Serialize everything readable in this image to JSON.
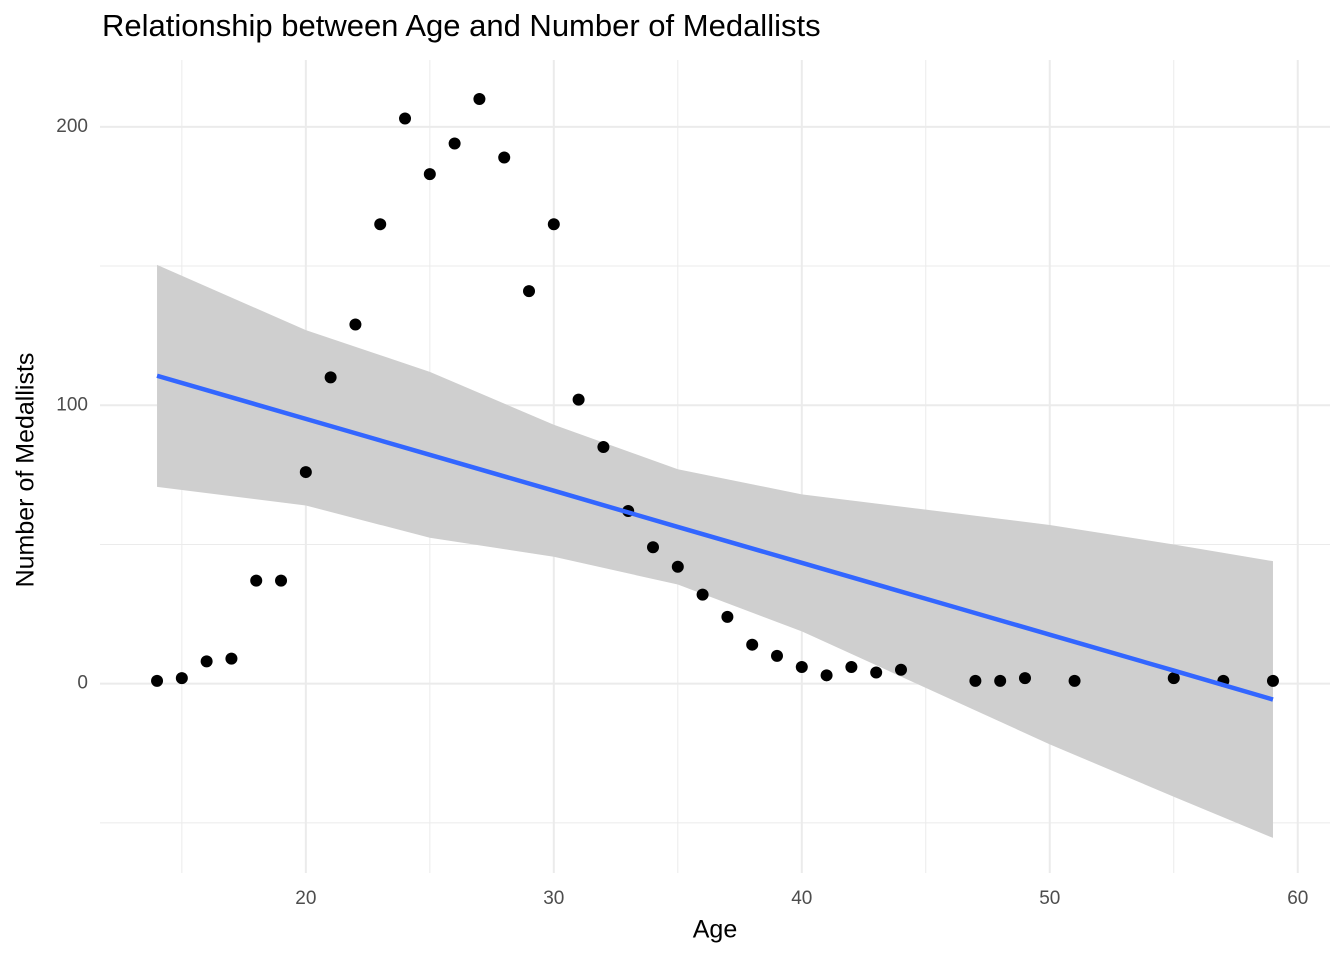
{
  "chart_data": {
    "type": "scatter",
    "title": "Relationship between Age and Number of Medallists",
    "x_label": "Age",
    "y_label": "Number of Medallists",
    "x": [
      14,
      15,
      16,
      17,
      18,
      19,
      20,
      21,
      22,
      23,
      24,
      25,
      26,
      27,
      28,
      29,
      30,
      31,
      32,
      33,
      34,
      35,
      36,
      37,
      38,
      39,
      40,
      41,
      42,
      43,
      44,
      47,
      48,
      49,
      51,
      55,
      57,
      59
    ],
    "values": [
      1,
      2,
      8,
      9,
      37,
      37,
      76,
      110,
      129,
      165,
      203,
      183,
      194,
      210,
      189,
      141,
      165,
      102,
      85,
      62,
      49,
      42,
      32,
      24,
      14,
      10,
      6,
      3,
      6,
      4,
      5,
      1,
      1,
      2,
      1,
      2,
      1,
      1
    ],
    "color": "#000000",
    "fit": {
      "color": "#3366ff",
      "band_color": "#cfcfcf",
      "x": [
        14,
        20,
        25,
        30,
        35,
        40,
        45,
        50,
        55,
        59
      ],
      "values": [
        110.6,
        95.1,
        82.2,
        69.3,
        56.3,
        43.4,
        30.5,
        17.6,
        4.7,
        -5.7
      ],
      "lower": [
        70.7,
        64,
        52.4,
        45.6,
        35.6,
        18.8,
        -1.5,
        -21.8,
        -40.6,
        -55.4
      ],
      "upper": [
        150.4,
        127,
        112,
        93,
        77,
        68,
        62.5,
        57,
        50,
        44
      ]
    },
    "xlim": [
      11.7,
      61.3
    ],
    "ylim": [
      -68,
      224
    ],
    "xticks": [
      20,
      30,
      40,
      50,
      60
    ],
    "yticks": [
      0,
      100,
      200
    ],
    "x_minor_ticks": [
      15,
      25,
      35,
      45,
      55
    ],
    "y_minor_ticks": [
      -50,
      50,
      150
    ],
    "grid": true
  }
}
